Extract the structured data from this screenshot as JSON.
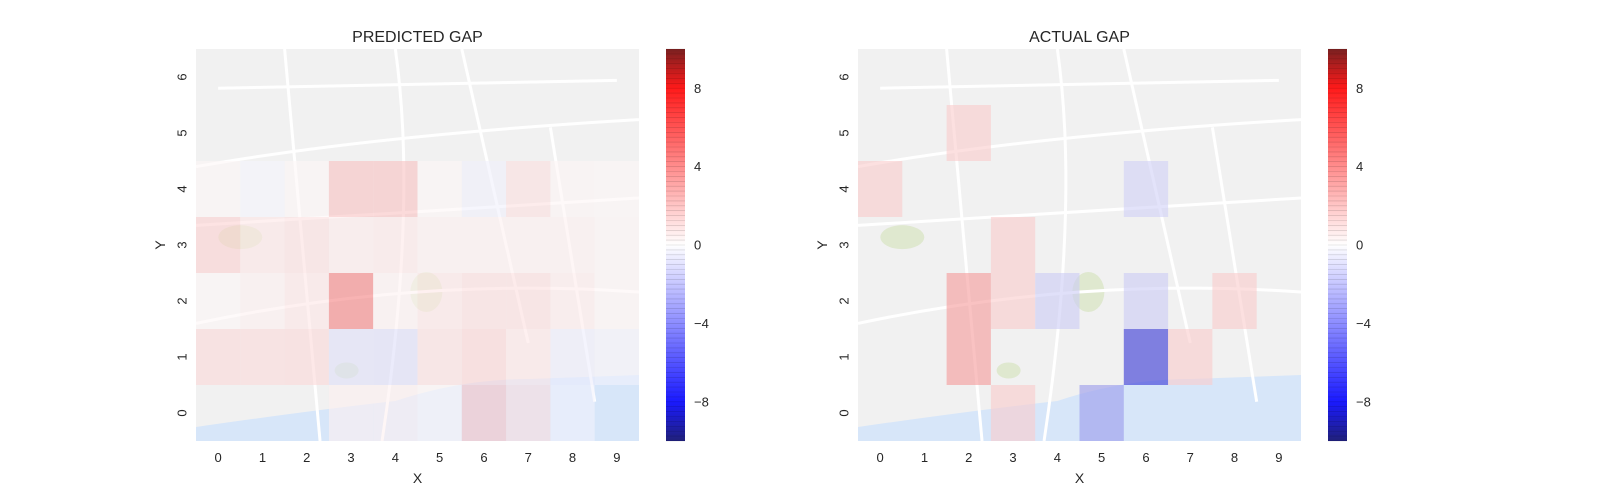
{
  "cmap": {
    "neg": "#0000cc",
    "mid": "#ffffff",
    "pos": "#e60000",
    "vmin": -10,
    "vmax": 10
  },
  "map_colors": {
    "land": "#f1f1f1",
    "road": "#ffffff",
    "water": "#d7e6f9",
    "park": "#dfe8cf"
  },
  "chart_data": [
    {
      "type": "heatmap",
      "title": "PREDICTED GAP",
      "xlabel": "X",
      "ylabel": "Y",
      "x_ticks": [
        "0",
        "1",
        "2",
        "3",
        "4",
        "5",
        "6",
        "7",
        "8",
        "9"
      ],
      "y_ticks": [
        "0",
        "1",
        "2",
        "3",
        "4",
        "5",
        "6"
      ],
      "colorbar_ticks": [
        "8",
        "4",
        "0",
        "−4",
        "−8"
      ],
      "colorbar_values": [
        8,
        4,
        0,
        -4,
        -8
      ],
      "cells": [
        {
          "x": 0,
          "y": 3,
          "v": 1.8
        },
        {
          "x": 1,
          "y": 3,
          "v": 1.0
        },
        {
          "x": 2,
          "y": 3,
          "v": 1.2
        },
        {
          "x": 3,
          "y": 3,
          "v": 0.8
        },
        {
          "x": 4,
          "y": 3,
          "v": 0.9
        },
        {
          "x": 5,
          "y": 3,
          "v": 0.6
        },
        {
          "x": 6,
          "y": 3,
          "v": 0.6
        },
        {
          "x": 7,
          "y": 3,
          "v": 0.6
        },
        {
          "x": 8,
          "y": 3,
          "v": 0.6
        },
        {
          "x": 9,
          "y": 3,
          "v": 0.4
        },
        {
          "x": 0,
          "y": 4,
          "v": 0.3
        },
        {
          "x": 1,
          "y": 4,
          "v": -0.4
        },
        {
          "x": 2,
          "y": 4,
          "v": 0.3
        },
        {
          "x": 3,
          "y": 4,
          "v": 2.4
        },
        {
          "x": 4,
          "y": 4,
          "v": 2.4
        },
        {
          "x": 5,
          "y": 4,
          "v": 0.3
        },
        {
          "x": 6,
          "y": 4,
          "v": -0.6
        },
        {
          "x": 7,
          "y": 4,
          "v": 1.2
        },
        {
          "x": 8,
          "y": 4,
          "v": 0.4
        },
        {
          "x": 9,
          "y": 4,
          "v": 0.3
        },
        {
          "x": 0,
          "y": 2,
          "v": 0.3
        },
        {
          "x": 1,
          "y": 2,
          "v": 0.6
        },
        {
          "x": 2,
          "y": 2,
          "v": 1.0
        },
        {
          "x": 3,
          "y": 2,
          "v": 5.0
        },
        {
          "x": 4,
          "y": 2,
          "v": 0.5
        },
        {
          "x": 5,
          "y": 2,
          "v": 1.0
        },
        {
          "x": 6,
          "y": 2,
          "v": 1.3
        },
        {
          "x": 7,
          "y": 2,
          "v": 1.3
        },
        {
          "x": 8,
          "y": 2,
          "v": 0.8
        },
        {
          "x": 9,
          "y": 2,
          "v": 0.4
        },
        {
          "x": 0,
          "y": 1,
          "v": 1.5
        },
        {
          "x": 1,
          "y": 1,
          "v": 1.4
        },
        {
          "x": 2,
          "y": 1,
          "v": 1.5
        },
        {
          "x": 3,
          "y": 1,
          "v": -1.2
        },
        {
          "x": 4,
          "y": 1,
          "v": -1.3
        },
        {
          "x": 5,
          "y": 1,
          "v": 1.2
        },
        {
          "x": 6,
          "y": 1,
          "v": 1.6
        },
        {
          "x": 7,
          "y": 1,
          "v": 1.0
        },
        {
          "x": 8,
          "y": 1,
          "v": -0.7
        },
        {
          "x": 9,
          "y": 1,
          "v": -0.5
        },
        {
          "x": 3,
          "y": 0,
          "v": 0.6
        },
        {
          "x": 4,
          "y": 0,
          "v": 0.6
        },
        {
          "x": 5,
          "y": 0,
          "v": 0.3
        },
        {
          "x": 6,
          "y": 0,
          "v": 2.3
        },
        {
          "x": 7,
          "y": 0,
          "v": 1.3
        },
        {
          "x": 8,
          "y": 0,
          "v": -0.5
        }
      ]
    },
    {
      "type": "heatmap",
      "title": "ACTUAL GAP",
      "xlabel": "X",
      "ylabel": "Y",
      "x_ticks": [
        "0",
        "1",
        "2",
        "3",
        "4",
        "5",
        "6",
        "7",
        "8",
        "9"
      ],
      "y_ticks": [
        "0",
        "1",
        "2",
        "3",
        "4",
        "5",
        "6"
      ],
      "colorbar_ticks": [
        "8",
        "4",
        "0",
        "−4",
        "−8"
      ],
      "colorbar_values": [
        8,
        4,
        0,
        -4,
        -8
      ],
      "cells": [
        {
          "x": 2,
          "y": 5,
          "v": 2.0
        },
        {
          "x": 0,
          "y": 4,
          "v": 2.0
        },
        {
          "x": 6,
          "y": 4,
          "v": -1.8
        },
        {
          "x": 3,
          "y": 3,
          "v": 2.0
        },
        {
          "x": 2,
          "y": 2,
          "v": 4.0
        },
        {
          "x": 3,
          "y": 2,
          "v": 2.0
        },
        {
          "x": 4,
          "y": 2,
          "v": -2.0
        },
        {
          "x": 6,
          "y": 2,
          "v": -2.0
        },
        {
          "x": 8,
          "y": 2,
          "v": 2.0
        },
        {
          "x": 2,
          "y": 1,
          "v": 4.0
        },
        {
          "x": 6,
          "y": 1,
          "v": -8.0
        },
        {
          "x": 7,
          "y": 1,
          "v": 2.0
        },
        {
          "x": 3,
          "y": 0,
          "v": 2.0
        },
        {
          "x": 5,
          "y": 0,
          "v": -4.0
        }
      ]
    }
  ]
}
